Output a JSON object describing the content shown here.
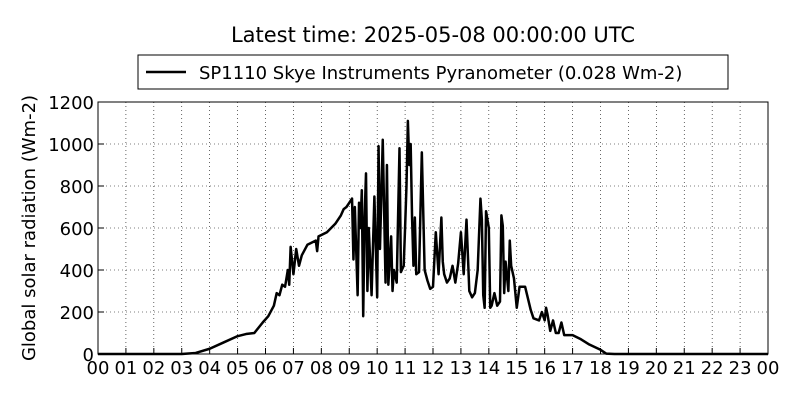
{
  "chart_data": {
    "type": "line",
    "title": "Latest time: 2025-05-08 00:00:00 UTC",
    "y_label": "Global solar radiation (Wm-2)",
    "grid": true,
    "legend": "upper center",
    "xlim": [
      0,
      24
    ],
    "ylim": [
      0,
      1200
    ],
    "yticks": [
      0,
      200,
      400,
      600,
      800,
      1000,
      1200
    ],
    "xticks": [
      {
        "value": 0,
        "label": "00"
      },
      {
        "value": 1,
        "label": "01"
      },
      {
        "value": 2,
        "label": "02"
      },
      {
        "value": 3,
        "label": "03"
      },
      {
        "value": 4,
        "label": "04"
      },
      {
        "value": 5,
        "label": "05"
      },
      {
        "value": 6,
        "label": "06"
      },
      {
        "value": 7,
        "label": "07"
      },
      {
        "value": 8,
        "label": "08"
      },
      {
        "value": 9,
        "label": "09"
      },
      {
        "value": 10,
        "label": "10"
      },
      {
        "value": 11,
        "label": "11"
      },
      {
        "value": 12,
        "label": "12"
      },
      {
        "value": 13,
        "label": "13"
      },
      {
        "value": 14,
        "label": "14"
      },
      {
        "value": 15,
        "label": "15"
      },
      {
        "value": 16,
        "label": "16"
      },
      {
        "value": 17,
        "label": "17"
      },
      {
        "value": 18,
        "label": "18"
      },
      {
        "value": 19,
        "label": "19"
      },
      {
        "value": 20,
        "label": "20"
      },
      {
        "value": 21,
        "label": "21"
      },
      {
        "value": 22,
        "label": "22"
      },
      {
        "value": 23,
        "label": "23"
      },
      {
        "value": 24,
        "label": "00"
      }
    ],
    "x": [
      0,
      3.0,
      3.5,
      4.0,
      4.5,
      5.0,
      5.3,
      5.6,
      5.9,
      6.1,
      6.3,
      6.4,
      6.5,
      6.6,
      6.7,
      6.8,
      6.85,
      6.9,
      7.0,
      7.1,
      7.2,
      7.3,
      7.5,
      7.8,
      7.85,
      7.9,
      8.2,
      8.5,
      8.7,
      8.8,
      8.9,
      9.0,
      9.1,
      9.15,
      9.2,
      9.3,
      9.35,
      9.4,
      9.45,
      9.5,
      9.55,
      9.6,
      9.65,
      9.7,
      9.8,
      9.9,
      10.0,
      10.05,
      10.1,
      10.2,
      10.3,
      10.35,
      10.4,
      10.5,
      10.55,
      10.6,
      10.7,
      10.8,
      10.85,
      10.95,
      11.0,
      11.05,
      11.1,
      11.15,
      11.2,
      11.25,
      11.3,
      11.35,
      11.4,
      11.5,
      11.6,
      11.7,
      11.8,
      11.9,
      12.0,
      12.1,
      12.2,
      12.3,
      12.35,
      12.4,
      12.5,
      12.6,
      12.7,
      12.8,
      12.9,
      13.0,
      13.1,
      13.2,
      13.3,
      13.4,
      13.5,
      13.6,
      13.7,
      13.75,
      13.8,
      13.85,
      13.9,
      14.0,
      14.05,
      14.1,
      14.2,
      14.3,
      14.4,
      14.45,
      14.5,
      14.55,
      14.6,
      14.7,
      14.75,
      14.8,
      14.9,
      15.0,
      15.1,
      15.3,
      15.5,
      15.6,
      15.8,
      15.9,
      16.0,
      16.05,
      16.1,
      16.2,
      16.3,
      16.4,
      16.5,
      16.6,
      16.7,
      17.0,
      17.3,
      17.6,
      18.0,
      18.2,
      18.5,
      24
    ],
    "series": [
      {
        "name": "SP1110 Skye Instruments Pyranometer (0.028 Wm-2)",
        "color": "#000000",
        "values": [
          0,
          0,
          5,
          25,
          55,
          85,
          95,
          100,
          150,
          180,
          230,
          290,
          280,
          330,
          320,
          400,
          330,
          510,
          380,
          500,
          420,
          470,
          520,
          540,
          490,
          560,
          580,
          620,
          660,
          690,
          700,
          720,
          740,
          450,
          700,
          280,
          720,
          600,
          780,
          180,
          650,
          860,
          300,
          600,
          280,
          750,
          270,
          990,
          500,
          1020,
          340,
          900,
          330,
          560,
          300,
          400,
          340,
          980,
          390,
          420,
          600,
          800,
          1110,
          900,
          1000,
          650,
          420,
          650,
          380,
          390,
          960,
          400,
          350,
          310,
          320,
          580,
          380,
          650,
          440,
          380,
          340,
          360,
          420,
          340,
          430,
          580,
          380,
          640,
          300,
          270,
          290,
          400,
          740,
          640,
          280,
          220,
          680,
          600,
          220,
          230,
          290,
          230,
          250,
          660,
          610,
          290,
          440,
          300,
          540,
          420,
          360,
          220,
          320,
          320,
          210,
          170,
          160,
          200,
          160,
          220,
          190,
          110,
          160,
          100,
          100,
          150,
          90,
          90,
          70,
          45,
          20,
          2,
          0,
          0
        ]
      }
    ]
  }
}
